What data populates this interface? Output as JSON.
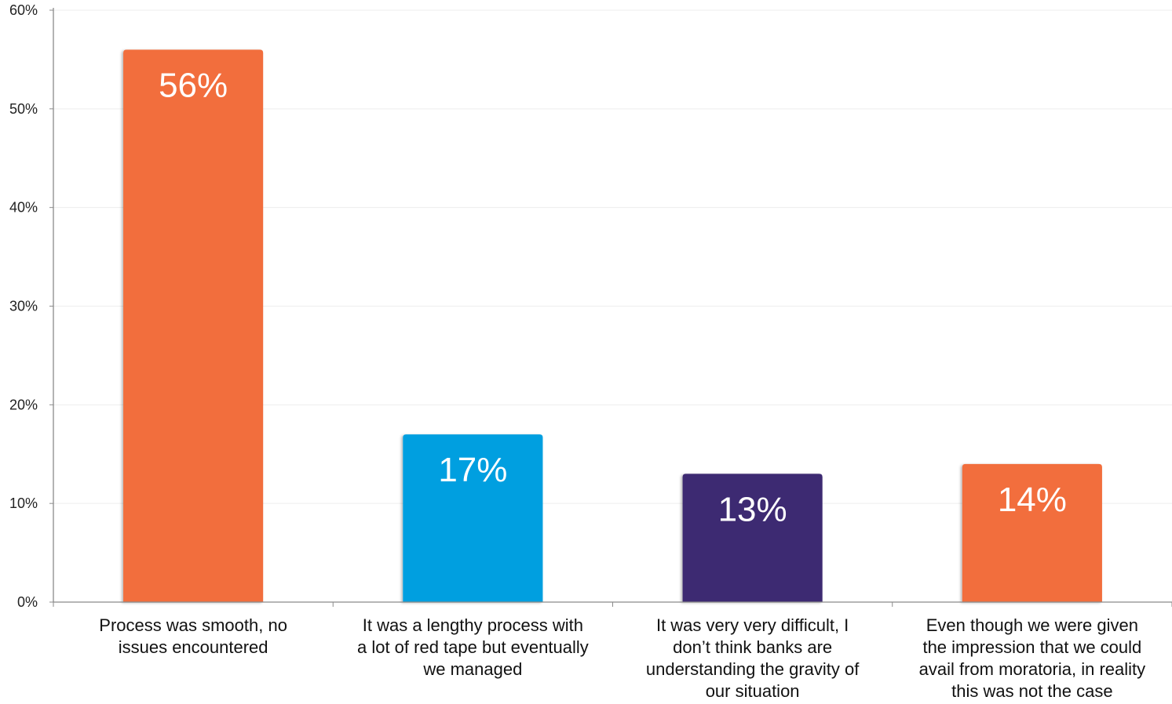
{
  "chart_data": {
    "type": "bar",
    "title": "",
    "xlabel": "",
    "ylabel": "",
    "ylim": [
      0,
      60
    ],
    "y_ticks": [
      0,
      10,
      20,
      30,
      40,
      50,
      60
    ],
    "y_tick_labels": [
      "0%",
      "10%",
      "20%",
      "30%",
      "40%",
      "50%",
      "60%"
    ],
    "grid": true,
    "legend": "none",
    "categories": [
      "Process was smooth, no issues encountered",
      "It was a lengthy process with a lot of red tape but eventually we managed",
      "It was very very difficult, I don’t think banks are understanding the gravity of our situation",
      "Even though we were given the impression that we could avail from moratoria, in reality this was not the case"
    ],
    "category_label_lines": [
      [
        "Process was smooth, no",
        "issues encountered"
      ],
      [
        "It was a lengthy process with",
        "a lot of red tape but eventually",
        "we managed"
      ],
      [
        "It was very very difficult, I",
        "don’t think banks are",
        "understanding the gravity of",
        "our situation"
      ],
      [
        "Even though we were given",
        "the impression that we could",
        "avail from moratoria, in reality",
        "this was not the case"
      ]
    ],
    "values": [
      56,
      17,
      13,
      14
    ],
    "value_labels": [
      "56%",
      "17%",
      "13%",
      "14%"
    ],
    "bar_colors": [
      "#F26E3C",
      "#009FE0",
      "#3D2A72",
      "#F26E3C"
    ],
    "colors": {
      "axis": "#8A8A8A",
      "grid": "#EDEDED",
      "tick_text": "#222222",
      "category_text": "#111111",
      "value_text": "#FFFFFF"
    }
  }
}
